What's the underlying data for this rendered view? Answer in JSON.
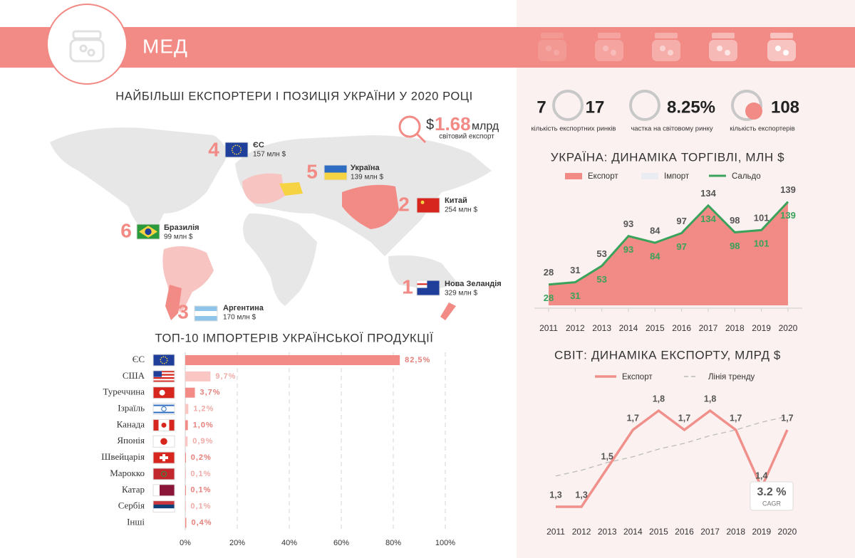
{
  "header": {
    "title": "МЕД"
  },
  "map": {
    "title": "НАЙБІЛЬШІ ЕКСПОРТЕРИ І ПОЗИЦІЯ УКРАЇНИ У 2020 РОЦІ",
    "world_export": {
      "currency": "$",
      "value": "1.68",
      "unit": "млрд",
      "label": "світовий експорт"
    },
    "exporters": [
      {
        "rank": 1,
        "name": "Нова Зеландія",
        "value": "329 млн $"
      },
      {
        "rank": 2,
        "name": "Китай",
        "value": "254 млн $"
      },
      {
        "rank": 3,
        "name": "Аргентина",
        "value": "170 млн $"
      },
      {
        "rank": 4,
        "name": "ЄС",
        "value": "157 млн $"
      },
      {
        "rank": 5,
        "name": "Україна",
        "value": "139 млн $"
      },
      {
        "rank": 6,
        "name": "Бразилія",
        "value": "99 млн $"
      }
    ]
  },
  "stats": [
    {
      "values": [
        "7",
        "17"
      ],
      "label": "кількість експортних ринків"
    },
    {
      "values": [
        "8.25%"
      ],
      "label": "частка на світовому ринку"
    },
    {
      "values": [
        "108"
      ],
      "label": "кількість експортерів"
    }
  ],
  "chart_data": [
    {
      "type": "hbar",
      "title": "ТОП-10 ІМПОРТЕРІВ УКРАЇНСЬКОЇ ПРОДУКЦІЇ",
      "categories": [
        "ЄС",
        "США",
        "Туреччина",
        "Ізраїль",
        "Канада",
        "Японія",
        "Швейцарія",
        "Марокко",
        "Катар",
        "Сербія",
        "Інші"
      ],
      "values": [
        82.5,
        9.7,
        3.7,
        1.2,
        1.0,
        0.9,
        0.2,
        0.1,
        0.1,
        0.1,
        0.4
      ],
      "value_labels": [
        "82,5%",
        "9,7%",
        "3,7%",
        "1,2%",
        "1,0%",
        "0,9%",
        "0,2%",
        "0,1%",
        "0,1%",
        "0,1%",
        "0,4%"
      ],
      "colors": [
        "#f28a85",
        "#f9c6c3",
        "#f28a85",
        "#f9c6c3",
        "#f28a85",
        "#f9c6c3",
        "#f28a85",
        "#f9c6c3",
        "#f28a85",
        "#f9c6c3",
        "#f28a85"
      ],
      "xlim": [
        0,
        100
      ],
      "xticks": [
        {
          "value": 0,
          "label": "0%"
        },
        {
          "value": 20,
          "label": "20%"
        },
        {
          "value": 40,
          "label": "40%"
        },
        {
          "value": 60,
          "label": "60%"
        },
        {
          "value": 80,
          "label": "80%"
        },
        {
          "value": 100,
          "label": "100%"
        }
      ],
      "grid": true
    },
    {
      "type": "area",
      "title": "УКРАЇНА: ДИНАМІКА ТОРГІВЛІ, МЛН $",
      "categories": [
        "2011",
        "2012",
        "2013",
        "2014",
        "2015",
        "2016",
        "2017",
        "2018",
        "2019",
        "2020"
      ],
      "ylim": [
        0,
        150
      ],
      "series": [
        {
          "name": "Експорт",
          "color": "#f28a85",
          "style": "area",
          "values": [
            28,
            31,
            53,
            93,
            84,
            97,
            134,
            98,
            101,
            139
          ]
        },
        {
          "name": "Імпорт",
          "color": "#e9edf1",
          "style": "area",
          "values": [
            0,
            0,
            0,
            0,
            0,
            0,
            0,
            0,
            0,
            0
          ]
        },
        {
          "name": "Сальдо",
          "color": "#3aa35b",
          "style": "line",
          "values": [
            28,
            31,
            53,
            93,
            84,
            97,
            134,
            98,
            101,
            139
          ]
        }
      ]
    },
    {
      "type": "line",
      "title": "СВІТ: ДИНАМІКА ЕКСПОРТУ, МЛРД $",
      "categories": [
        "2011",
        "2012",
        "2013",
        "2014",
        "2015",
        "2016",
        "2017",
        "2018",
        "2019",
        "2020"
      ],
      "ylim": [
        1.2,
        1.9
      ],
      "series": [
        {
          "name": "Експорт",
          "color": "#f0908b",
          "style": "solid",
          "values": [
            1.3,
            1.3,
            1.5,
            1.7,
            1.8,
            1.7,
            1.8,
            1.7,
            1.4,
            1.7
          ],
          "value_labels": [
            "1,3",
            "1,3",
            "1,5",
            "1,7",
            "1,8",
            "1,7",
            "1,8",
            "1,7",
            "1,4",
            "1,7"
          ]
        },
        {
          "name": "Лінія тренду",
          "color": "#bbbbbb",
          "style": "dashed",
          "values": [
            1.46,
            1.49,
            1.53,
            1.56,
            1.6,
            1.63,
            1.67,
            1.7,
            1.74,
            1.77
          ]
        }
      ],
      "annotation": {
        "value": "3.2 %",
        "label": "CAGR"
      }
    }
  ]
}
